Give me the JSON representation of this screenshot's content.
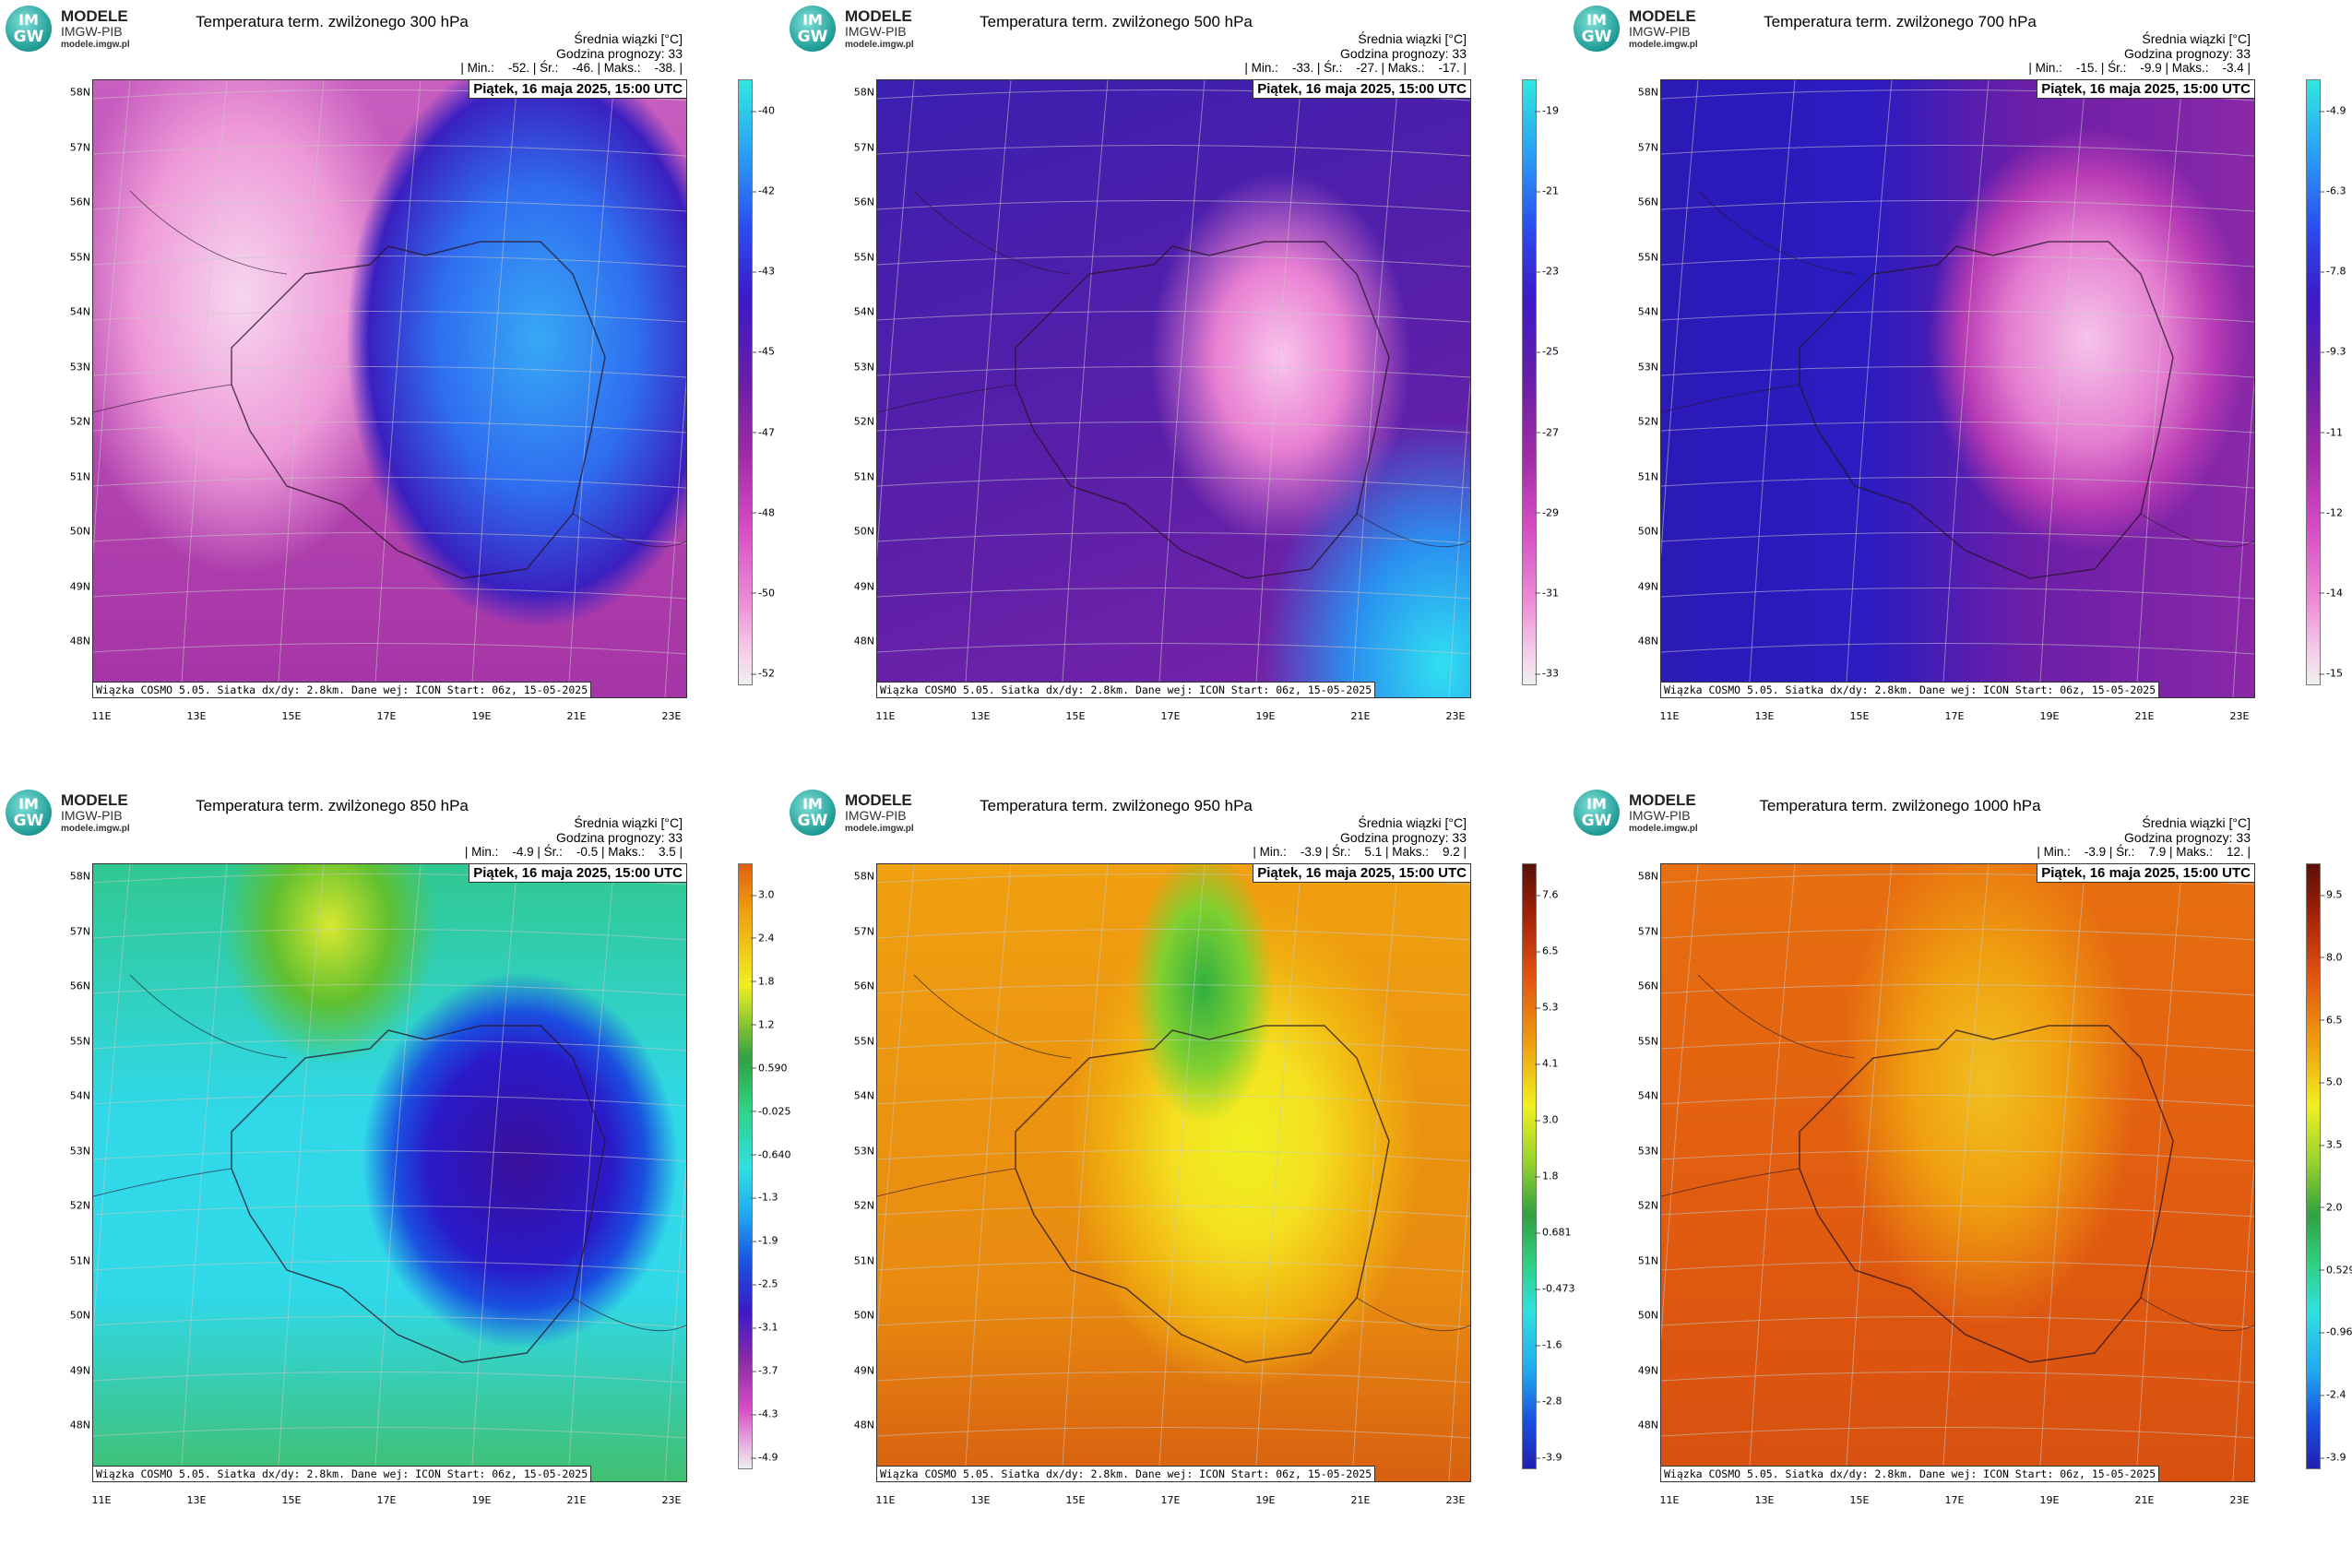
{
  "logo": {
    "emblem_top": "IM",
    "emblem_bottom": "GW",
    "name": "MODELE",
    "org": "IMGW-PIB",
    "url": "modele.imgw.pl"
  },
  "date": "Piątek, 16 maja 2025, 15:00 UTC",
  "footer": "Wiązka COSMO 5.05. Siatka dx/dy: 2.8km. Dane wej: ICON Start: 06z, 15-05-2025",
  "header_unit_line": "Średnia wiązki [°C]",
  "header_forecast_line": "Godzina prognozy: 33",
  "lat_labels": [
    "58N",
    "57N",
    "56N",
    "55N",
    "54N",
    "53N",
    "52N",
    "51N",
    "50N",
    "49N",
    "48N"
  ],
  "lon_labels": [
    "11E",
    "13E",
    "15E",
    "17E",
    "19E",
    "21E",
    "23E"
  ],
  "colors": {
    "pink_purple_blue_scale": [
      "#f0f0f0",
      "#f5c9e8",
      "#ee8ad6",
      "#d64cc4",
      "#a12aa8",
      "#6a1ea8",
      "#3c1ac8",
      "#2a4ff0",
      "#2aa0f5",
      "#30e8e0"
    ],
    "rainbow_scale": [
      "#2020b0",
      "#1a50e0",
      "#20a8f0",
      "#30e0e0",
      "#30d080",
      "#30a040",
      "#90d030",
      "#f0f020",
      "#f0a010",
      "#e05010",
      "#a02008",
      "#5a1008"
    ]
  },
  "panels": [
    {
      "title": "Temperatura term. zwilżonego 300 hPa",
      "stats": "| Min.:    -52. | Śr.:    -46. | Maks.:    -38. |",
      "ticks": [
        "-40",
        "-42",
        "-43",
        "-45",
        "-47",
        "-48",
        "-50",
        "-52"
      ],
      "scale": "pink"
    },
    {
      "title": "Temperatura term. zwilżonego 500 hPa",
      "stats": "| Min.:    -33. | Śr.:    -27. | Maks.:    -17. |",
      "ticks": [
        "-19",
        "-21",
        "-23",
        "-25",
        "-27",
        "-29",
        "-31",
        "-33"
      ],
      "scale": "pink"
    },
    {
      "title": "Temperatura term. zwilżonego 700 hPa",
      "stats": "| Min.:    -15. | Śr.:    -9.9 | Maks.:    -3.4 |",
      "ticks": [
        "-4.9",
        "-6.3",
        "-7.8",
        "-9.3",
        "-11",
        "-12",
        "-14",
        "-15"
      ],
      "scale": "pink"
    },
    {
      "title": "Temperatura term. zwilżonego 850 hPa",
      "stats": "| Min.:    -4.9 | Śr.:    -0.5 | Maks.:    3.5 |",
      "ticks": [
        "3.0",
        "2.4",
        "1.8",
        "1.2",
        "0.590",
        "-0.025",
        "-0.640",
        "-1.3",
        "-1.9",
        "-2.5",
        "-3.1",
        "-3.7",
        "-4.3",
        "-4.9"
      ],
      "scale": "rainbow850"
    },
    {
      "title": "Temperatura term. zwilżonego 950 hPa",
      "stats": "| Min.:    -3.9 | Śr.:    5.1 | Maks.:    9.2 |",
      "ticks": [
        "7.6",
        "6.5",
        "5.3",
        "4.1",
        "3.0",
        "1.8",
        "0.681",
        "-0.473",
        "-1.6",
        "-2.8",
        "-3.9"
      ],
      "scale": "rainbow"
    },
    {
      "title": "Temperatura term. zwilżonego 1000 hPa",
      "stats": "| Min.:    -3.9 | Śr.:    7.9 | Maks.:    12. |",
      "ticks": [
        "9.5",
        "8.0",
        "6.5",
        "5.0",
        "3.5",
        "2.0",
        "0.529",
        "-0.960",
        "-2.4",
        "-3.9"
      ],
      "scale": "rainbow"
    }
  ]
}
